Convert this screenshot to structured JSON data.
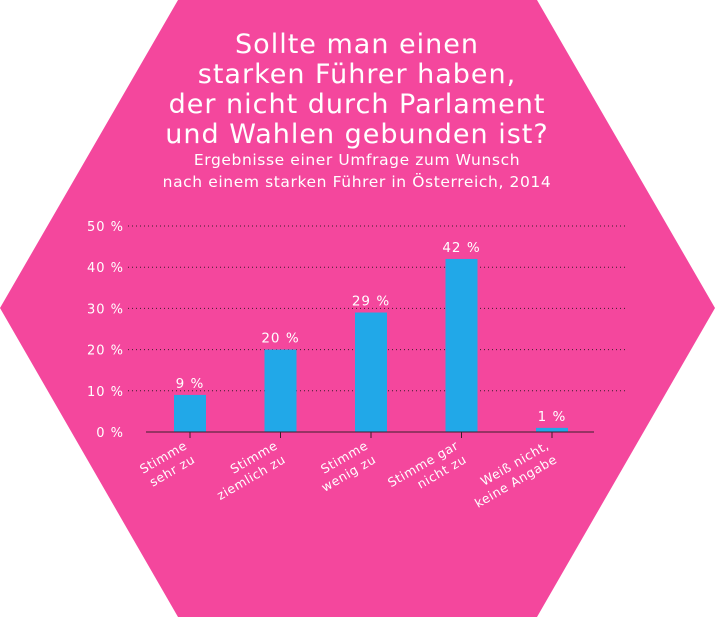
{
  "colors": {
    "background": "#f4479d",
    "bar": "#21a8e8",
    "text": "#ffffff",
    "grid": "#3a1f2c"
  },
  "chart_data": {
    "type": "bar",
    "title_lines": [
      "Sollte man einen",
      "starken Führer haben,",
      "der nicht durch Parlament",
      "und Wahlen gebunden ist?"
    ],
    "subtitle_lines": [
      "Ergebnisse einer Umfrage zum Wunsch",
      "nach einem starken Führer in Österreich, 2014"
    ],
    "categories": [
      [
        "Stimme",
        "sehr zu"
      ],
      [
        "Stimme",
        "ziemlich zu"
      ],
      [
        "Stimme",
        "wenig zu"
      ],
      [
        "Stimme gar",
        "nicht zu"
      ],
      [
        "Weiß nicht,",
        "keine Angabe"
      ]
    ],
    "values": [
      9,
      20,
      29,
      42,
      1
    ],
    "value_labels": [
      "9 %",
      "20 %",
      "29 %",
      "42 %",
      "1 %"
    ],
    "ylim": [
      0,
      50
    ],
    "yticks": [
      0,
      10,
      20,
      30,
      40,
      50
    ],
    "ytick_labels": [
      "0 %",
      "10 %",
      "20 %",
      "30 %",
      "40 %",
      "50 %"
    ],
    "grid": true,
    "grid_style": "dotted",
    "xlabel": "",
    "ylabel": ""
  }
}
